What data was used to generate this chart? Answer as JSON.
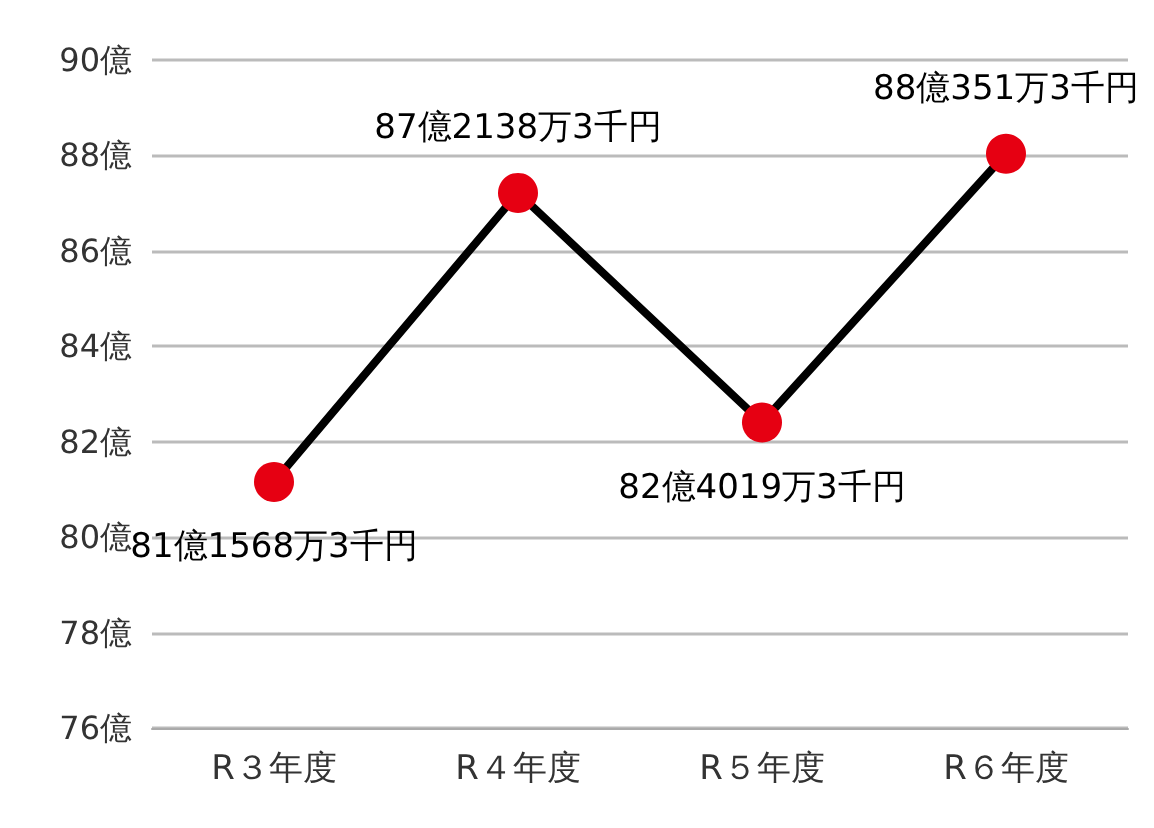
{
  "chart_data": {
    "type": "line",
    "categories": [
      "R３年度",
      "R４年度",
      "R５年度",
      "R６年度"
    ],
    "series": [
      {
        "color": "#000000",
        "colors": [
          "#e60012",
          "#e60012",
          "#e60012",
          "#e60012"
        ],
        "values": [
          81.15683,
          87.21383,
          82.40193,
          88.03513
        ],
        "value_labels": [
          "81億1568万3千円",
          "87億2138万3千円",
          "82億4019万3千円",
          "88億351万3千円"
        ]
      }
    ],
    "ylim": [
      76,
      90
    ],
    "yticks": [
      {
        "value": 76,
        "label": "76億"
      },
      {
        "value": 78,
        "label": "78億"
      },
      {
        "value": 80,
        "label": "80億"
      },
      {
        "value": 82,
        "label": "82億"
      },
      {
        "value": 84,
        "label": "84億"
      },
      {
        "value": 86,
        "label": "86億"
      },
      {
        "value": 88,
        "label": "88億"
      },
      {
        "value": 90,
        "label": "90億"
      }
    ],
    "grid": "y",
    "marker": "circle",
    "line_style": "solid"
  }
}
